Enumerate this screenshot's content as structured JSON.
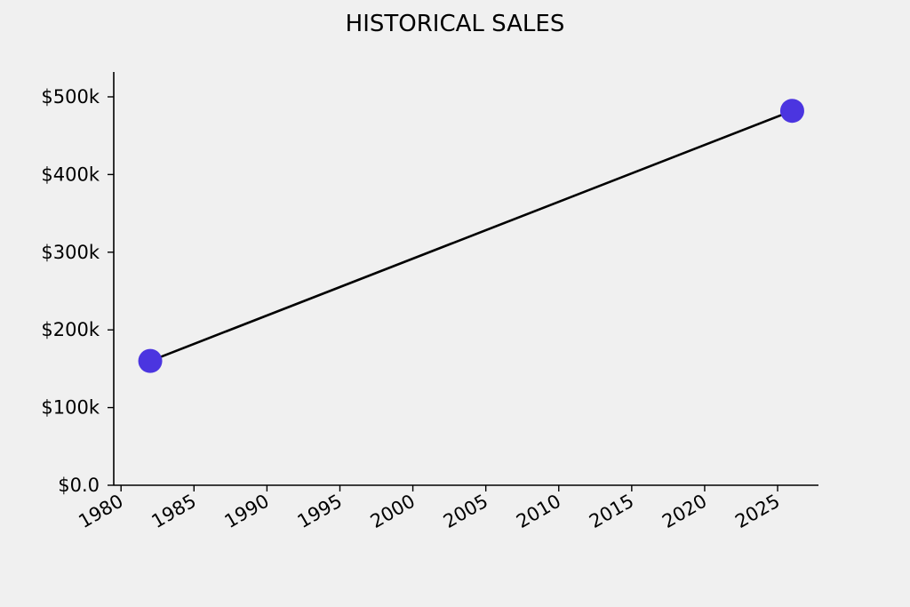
{
  "chart_data": {
    "type": "line",
    "title": "HISTORICAL SALES",
    "xlabel": "",
    "ylabel": "",
    "x": [
      1982,
      2026
    ],
    "series": [
      {
        "values": [
          160000,
          482000
        ]
      }
    ],
    "xlim": [
      1979.5,
      2027.8
    ],
    "ylim": [
      0,
      532000
    ],
    "x_ticks": [
      1980,
      1985,
      1990,
      1995,
      2000,
      2005,
      2010,
      2015,
      2020,
      2025
    ],
    "x_tick_labels": [
      "1980",
      "1985",
      "1990",
      "1995",
      "2000",
      "2005",
      "2010",
      "2015",
      "2020",
      "2025"
    ],
    "y_ticks": [
      0,
      100000,
      200000,
      300000,
      400000,
      500000
    ],
    "y_tick_labels": [
      "$0.0",
      "$100k",
      "$200k",
      "$300k",
      "$400k",
      "$500k"
    ],
    "grid": false,
    "legend": "none",
    "colors": {
      "line": "#000000",
      "marker": "#4b35e0",
      "background": "#f0f0f0",
      "axis": "#000000"
    }
  }
}
